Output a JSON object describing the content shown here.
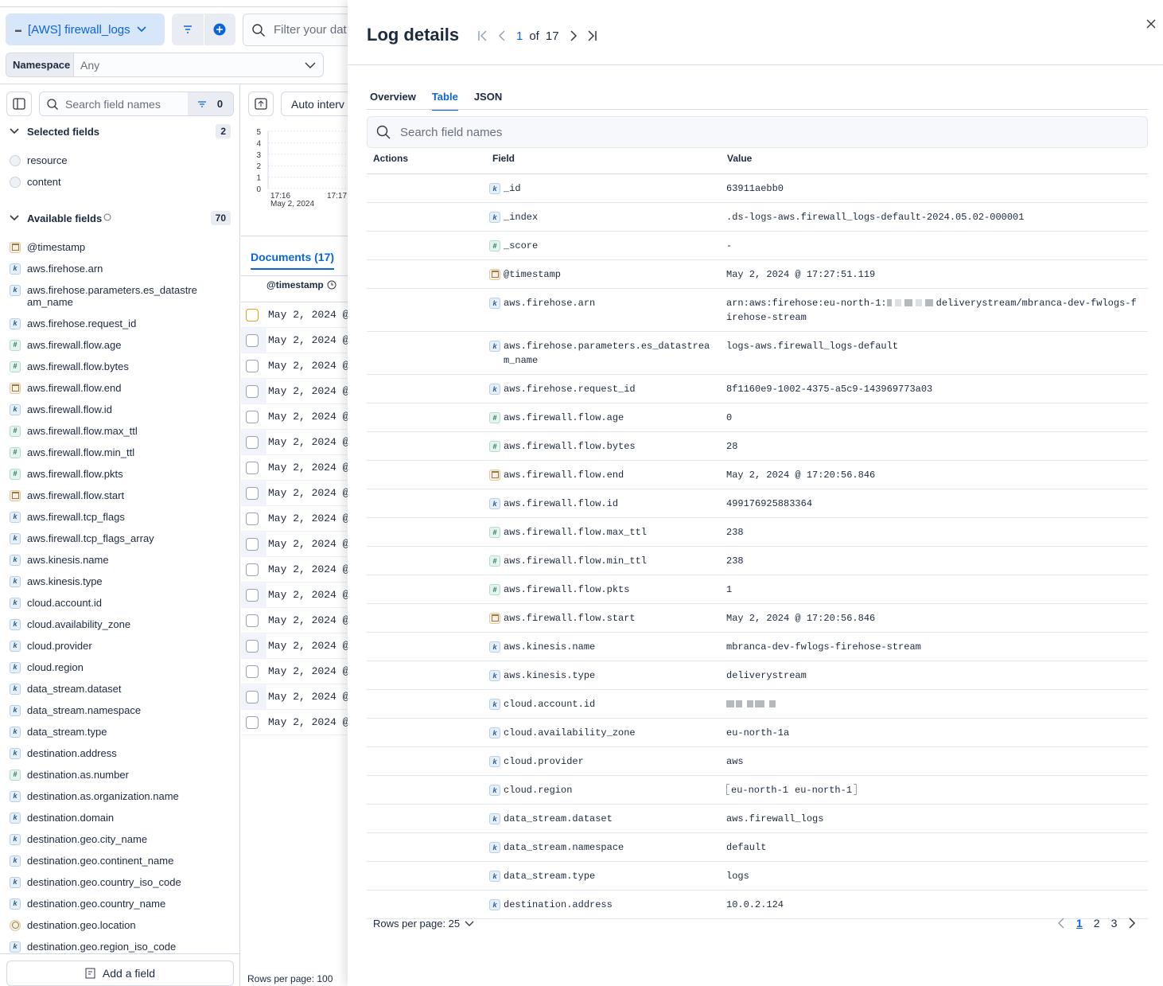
{
  "toolbar": {
    "data_view": "[AWS] firewall_logs",
    "query_placeholder": "Filter your dat",
    "namespace_label": "Namespace",
    "namespace_value": "Any"
  },
  "sidebar": {
    "search_placeholder": "Search field names",
    "filter_count": "0",
    "selected_title": "Selected fields",
    "selected_count": "2",
    "selected_fields": [
      {
        "name": "resource",
        "type": "unknown"
      },
      {
        "name": "content",
        "type": "unknown"
      }
    ],
    "available_title": "Available fields",
    "available_count": "70",
    "available_fields": [
      {
        "name": "@timestamp",
        "type": "date"
      },
      {
        "name": "aws.firehose.arn",
        "type": "k"
      },
      {
        "name": "aws.firehose.parameters.es_datastream_name",
        "type": "k"
      },
      {
        "name": "aws.firehose.request_id",
        "type": "k"
      },
      {
        "name": "aws.firewall.flow.age",
        "type": "#"
      },
      {
        "name": "aws.firewall.flow.bytes",
        "type": "#"
      },
      {
        "name": "aws.firewall.flow.end",
        "type": "date"
      },
      {
        "name": "aws.firewall.flow.id",
        "type": "k"
      },
      {
        "name": "aws.firewall.flow.max_ttl",
        "type": "#"
      },
      {
        "name": "aws.firewall.flow.min_ttl",
        "type": "#"
      },
      {
        "name": "aws.firewall.flow.pkts",
        "type": "#"
      },
      {
        "name": "aws.firewall.flow.start",
        "type": "date"
      },
      {
        "name": "aws.firewall.tcp_flags",
        "type": "k"
      },
      {
        "name": "aws.firewall.tcp_flags_array",
        "type": "k"
      },
      {
        "name": "aws.kinesis.name",
        "type": "k"
      },
      {
        "name": "aws.kinesis.type",
        "type": "k"
      },
      {
        "name": "cloud.account.id",
        "type": "k"
      },
      {
        "name": "cloud.availability_zone",
        "type": "k"
      },
      {
        "name": "cloud.provider",
        "type": "k"
      },
      {
        "name": "cloud.region",
        "type": "k"
      },
      {
        "name": "data_stream.dataset",
        "type": "k"
      },
      {
        "name": "data_stream.namespace",
        "type": "k"
      },
      {
        "name": "data_stream.type",
        "type": "k"
      },
      {
        "name": "destination.address",
        "type": "k"
      },
      {
        "name": "destination.as.number",
        "type": "#"
      },
      {
        "name": "destination.as.organization.name",
        "type": "k"
      },
      {
        "name": "destination.domain",
        "type": "k"
      },
      {
        "name": "destination.geo.city_name",
        "type": "k"
      },
      {
        "name": "destination.geo.continent_name",
        "type": "k"
      },
      {
        "name": "destination.geo.country_iso_code",
        "type": "k"
      },
      {
        "name": "destination.geo.country_name",
        "type": "k"
      },
      {
        "name": "destination.geo.location",
        "type": "geo"
      },
      {
        "name": "destination.geo.region_iso_code",
        "type": "k"
      }
    ],
    "add_field": "Add a field"
  },
  "histogram": {
    "interval": "Auto interv",
    "ylim": [
      0,
      5
    ],
    "yticks": [
      5,
      4,
      3,
      2,
      1,
      0
    ],
    "xticks": [
      "17:16",
      "17:17"
    ],
    "date": "May 2, 2024"
  },
  "documents": {
    "tab": "Documents (17)",
    "column": "@timestamp",
    "rows": [
      "May 2, 2024 @",
      "May 2, 2024 @",
      "May 2, 2024 @",
      "May 2, 2024 @",
      "May 2, 2024 @",
      "May 2, 2024 @",
      "May 2, 2024 @",
      "May 2, 2024 @",
      "May 2, 2024 @",
      "May 2, 2024 @",
      "May 2, 2024 @",
      "May 2, 2024 @",
      "May 2, 2024 @",
      "May 2, 2024 @",
      "May 2, 2024 @",
      "May 2, 2024 @",
      "May 2, 2024 @"
    ],
    "rows_per_page": "Rows per page: 100"
  },
  "flyout": {
    "title": "Log details",
    "current": "1",
    "of": "of",
    "total": "17",
    "tabs": [
      "Overview",
      "Table",
      "JSON"
    ],
    "active_tab": 1,
    "search_placeholder": "Search field names",
    "columns": [
      "Actions",
      "Field",
      "Value"
    ],
    "rows": [
      {
        "field": "_id",
        "type": "k",
        "value": "63911aebb0"
      },
      {
        "field": "_index",
        "type": "k",
        "value": ".ds-logs-aws.firewall_logs-default-2024.05.02-000001"
      },
      {
        "field": "_score",
        "type": "#",
        "value": "-"
      },
      {
        "field": "@timestamp",
        "type": "date",
        "value": "May 2, 2024 @ 17:27:51.119"
      },
      {
        "field": "aws.firehose.arn",
        "type": "k",
        "value": "arn:aws:firehose:eu-north-1:",
        "value_end": "deliverystream/mbranca-dev-fwlogs-firehose-stream"
      },
      {
        "field": "aws.firehose.parameters.es_datastream_name",
        "type": "k",
        "value": "logs-aws.firewall_logs-default"
      },
      {
        "field": "aws.firehose.request_id",
        "type": "k",
        "value": "8f1160e9-1002-4375-a5c9-143969773a03"
      },
      {
        "field": "aws.firewall.flow.age",
        "type": "#",
        "value": "0"
      },
      {
        "field": "aws.firewall.flow.bytes",
        "type": "#",
        "value": "28"
      },
      {
        "field": "aws.firewall.flow.end",
        "type": "date",
        "value": "May 2, 2024 @ 17:20:56.846"
      },
      {
        "field": "aws.firewall.flow.id",
        "type": "k",
        "value": "499176925883364"
      },
      {
        "field": "aws.firewall.flow.max_ttl",
        "type": "#",
        "value": "238"
      },
      {
        "field": "aws.firewall.flow.min_ttl",
        "type": "#",
        "value": "238"
      },
      {
        "field": "aws.firewall.flow.pkts",
        "type": "#",
        "value": "1"
      },
      {
        "field": "aws.firewall.flow.start",
        "type": "date",
        "value": "May 2, 2024 @ 17:20:56.846"
      },
      {
        "field": "aws.kinesis.name",
        "type": "k",
        "value": "mbranca-dev-fwlogs-firehose-stream"
      },
      {
        "field": "aws.kinesis.type",
        "type": "k",
        "value": "deliverystream"
      },
      {
        "field": "cloud.account.id",
        "type": "k",
        "value": null
      },
      {
        "field": "cloud.availability_zone",
        "type": "k",
        "value": "eu-north-1a"
      },
      {
        "field": "cloud.provider",
        "type": "k",
        "value": "aws"
      },
      {
        "field": "cloud.region",
        "type": "k",
        "value": [
          "eu-north-1",
          "eu-north-1"
        ]
      },
      {
        "field": "data_stream.dataset",
        "type": "k",
        "value": "aws.firewall_logs"
      },
      {
        "field": "data_stream.namespace",
        "type": "k",
        "value": "default"
      },
      {
        "field": "data_stream.type",
        "type": "k",
        "value": "logs"
      },
      {
        "field": "destination.address",
        "type": "k",
        "value": "10.0.2.124"
      }
    ],
    "rows_per_page": "Rows per page: 25",
    "pages": [
      "1",
      "2",
      "3"
    ],
    "active_page": 0
  }
}
